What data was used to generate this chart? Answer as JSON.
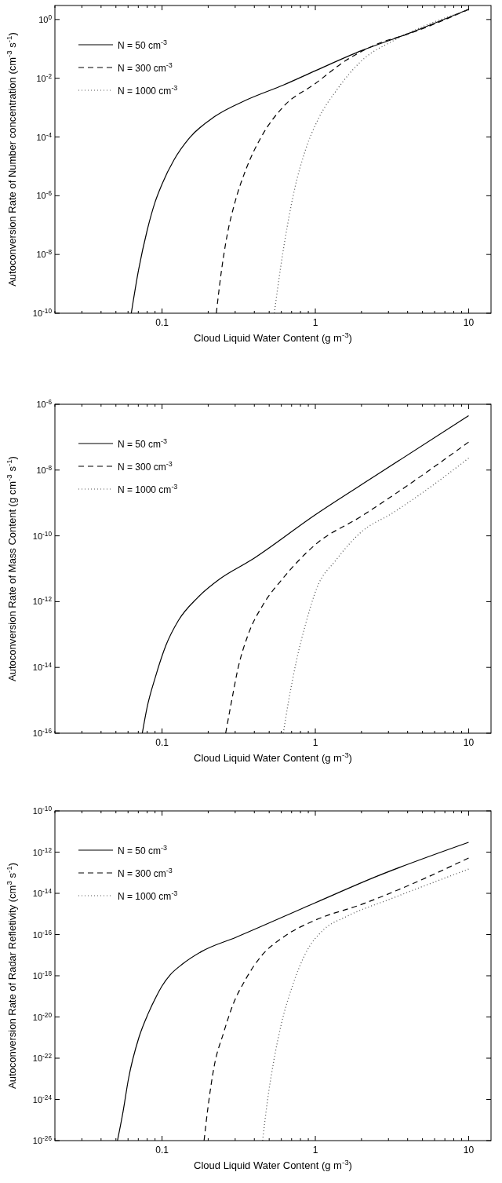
{
  "chart_data": [
    {
      "type": "line",
      "log": "xy",
      "legend": "top left",
      "xlabel": "Cloud Liquid Water Content (g m$^{-3}$)",
      "ylabel": "Autoconversion Rate of Number concentration (cm$^{-3}$ s$^{-1}$)",
      "xlim": [
        0.02,
        14
      ],
      "ylim": [
        1e-10,
        3
      ],
      "xticks": [
        {
          "value": 0.02,
          "label": null
        },
        {
          "value": 0.03,
          "label": null
        },
        {
          "value": 0.04,
          "label": null
        },
        {
          "value": 0.05,
          "label": null
        },
        {
          "value": 0.06,
          "label": null
        },
        {
          "value": 0.07,
          "label": null
        },
        {
          "value": 0.08,
          "label": null
        },
        {
          "value": 0.09,
          "label": null
        },
        0.1,
        {
          "value": 0.2,
          "label": null
        },
        {
          "value": 0.3,
          "label": null
        },
        {
          "value": 0.4,
          "label": null
        },
        {
          "value": 0.5,
          "label": null
        },
        {
          "value": 0.6,
          "label": null
        },
        {
          "value": 0.7,
          "label": null
        },
        {
          "value": 0.8,
          "label": null
        },
        {
          "value": 0.9,
          "label": null
        },
        1,
        {
          "value": 2,
          "label": null
        },
        {
          "value": 3,
          "label": null
        },
        {
          "value": 4,
          "label": null
        },
        {
          "value": 5,
          "label": null
        },
        {
          "value": 6,
          "label": null
        },
        {
          "value": 7,
          "label": null
        },
        {
          "value": 8,
          "label": null
        },
        {
          "value": 9,
          "label": null
        },
        10
      ],
      "yticks": [
        {
          "value": 1e-10,
          "label": "10$^{-10}$"
        },
        {
          "value": 1e-08,
          "label": "10$^{-8}$"
        },
        {
          "value": 1e-06,
          "label": "10$^{-6}$"
        },
        {
          "value": 0.0001,
          "label": "10$^{-4}$"
        },
        {
          "value": 0.01,
          "label": "10$^{-2}$"
        },
        {
          "value": 1,
          "label": "10$^{0}$"
        }
      ],
      "series": [
        {
          "name": "N = 50 cm$^{-3}$",
          "color": "#000000",
          "line_style": "solid",
          "x": [
            0.063,
            0.0703,
            0.08,
            0.09,
            0.1,
            0.12,
            0.151,
            0.221,
            0.353,
            0.62,
            1,
            2.02,
            4.09,
            10
          ],
          "values": [
            1e-10,
            3e-09,
            6.7e-08,
            6e-07,
            2.5e-06,
            1.7e-05,
            9.3e-05,
            0.0005,
            0.0018,
            0.0059,
            0.018,
            0.089,
            0.34,
            2.24
          ]
        },
        {
          "name": "N = 300 cm$^{-3}$",
          "color": "#000000",
          "line_style": "dashed",
          "x": [
            0.226,
            0.242,
            0.266,
            0.299,
            0.353,
            0.447,
            0.621,
            1,
            1.59,
            2.55,
            4.09,
            10
          ],
          "values": [
            1e-10,
            2e-09,
            4.6e-08,
            6e-07,
            8e-06,
            0.000107,
            0.0011,
            0.0066,
            0.041,
            0.148,
            0.33,
            2.2
          ]
        },
        {
          "name": "N = 1000 cm$^{-3}$",
          "color": "#555555",
          "line_style": "dotted",
          "x": [
            0.54,
            0.593,
            0.652,
            0.733,
            0.865,
            1.04,
            1.38,
            2.02,
            3.23,
            5.17,
            10
          ],
          "values": [
            1e-10,
            3.5e-09,
            7.6e-08,
            1.7e-06,
            3.8e-05,
            0.00039,
            0.004,
            0.041,
            0.19,
            0.61,
            2.1
          ]
        }
      ]
    },
    {
      "type": "line",
      "log": "xy",
      "legend": "top left",
      "xlabel": "Cloud Liquid Water Content (g m$^{-3}$)",
      "ylabel": "Autoconversion Rate of Mass Content (g cm$^{-3}$ s$^{-1}$)",
      "xlim": [
        0.02,
        14
      ],
      "ylim": [
        1e-16,
        1e-06
      ],
      "xticks": [
        {
          "value": 0.02,
          "label": null
        },
        {
          "value": 0.03,
          "label": null
        },
        {
          "value": 0.04,
          "label": null
        },
        {
          "value": 0.05,
          "label": null
        },
        {
          "value": 0.06,
          "label": null
        },
        {
          "value": 0.07,
          "label": null
        },
        {
          "value": 0.08,
          "label": null
        },
        {
          "value": 0.09,
          "label": null
        },
        0.1,
        {
          "value": 0.2,
          "label": null
        },
        {
          "value": 0.3,
          "label": null
        },
        {
          "value": 0.4,
          "label": null
        },
        {
          "value": 0.5,
          "label": null
        },
        {
          "value": 0.6,
          "label": null
        },
        {
          "value": 0.7,
          "label": null
        },
        {
          "value": 0.8,
          "label": null
        },
        {
          "value": 0.9,
          "label": null
        },
        1,
        {
          "value": 2,
          "label": null
        },
        {
          "value": 3,
          "label": null
        },
        {
          "value": 4,
          "label": null
        },
        {
          "value": 5,
          "label": null
        },
        {
          "value": 6,
          "label": null
        },
        {
          "value": 7,
          "label": null
        },
        {
          "value": 8,
          "label": null
        },
        {
          "value": 9,
          "label": null
        },
        10
      ],
      "yticks": [
        {
          "value": 1e-16,
          "label": "10$^{-16}$"
        },
        {
          "value": 1e-14,
          "label": "10$^{-14}$"
        },
        {
          "value": 1e-12,
          "label": "10$^{-12}$"
        },
        {
          "value": 1e-10,
          "label": "10$^{-10}$"
        },
        {
          "value": 1e-08,
          "label": "10$^{-8}$"
        },
        {
          "value": 1e-06,
          "label": "10$^{-6}$"
        }
      ],
      "series": [
        {
          "name": "N = 50 cm$^{-3}$",
          "color": "#000000",
          "line_style": "solid",
          "x": [
            0.0743,
            0.0797,
            0.0906,
            0.106,
            0.128,
            0.17,
            0.237,
            0.379,
            1,
            2.51,
            10
          ],
          "values": [
            1e-16,
            5.8e-16,
            5.2e-15,
            4.7e-14,
            2.7e-13,
            1.3e-12,
            4.8e-12,
            1.8e-11,
            4.4e-10,
            7.1e-09,
            4.5e-07
          ]
        },
        {
          "name": "N = 300 cm$^{-3}$",
          "color": "#000000",
          "line_style": "dashed",
          "x": [
            0.26,
            0.286,
            0.314,
            0.362,
            0.458,
            0.608,
            1,
            1.99,
            4.03,
            10
          ],
          "values": [
            1e-16,
            1.1e-15,
            1e-14,
            9.1e-14,
            8.3e-13,
            4.8e-12,
            5.4e-11,
            3.9e-10,
            3.5e-09,
            7.1e-08
          ]
        },
        {
          "name": "N = 1000 cm$^{-3}$",
          "color": "#555555",
          "line_style": "dotted",
          "x": [
            0.618,
            0.668,
            0.753,
            0.867,
            1.02,
            1.36,
            1.99,
            3.18,
            5.11,
            10
          ],
          "values": [
            1e-16,
            9.1e-16,
            1.6e-14,
            2.2e-13,
            2.5e-12,
            1.8e-11,
            1.3e-10,
            4.9e-10,
            2.2e-09,
            2.3e-08
          ]
        }
      ]
    },
    {
      "type": "line",
      "log": "xy",
      "legend": "top left",
      "xlabel": "Cloud Liquid Water Content (g m$^{-3}$)",
      "ylabel": "Autoconversion Rate of Radar Refletivity (cm$^{3}$ s$^{-1}$)",
      "xlim": [
        0.02,
        14
      ],
      "ylim": [
        1e-26,
        1e-10
      ],
      "xticks": [
        {
          "value": 0.02,
          "label": null
        },
        {
          "value": 0.03,
          "label": null
        },
        {
          "value": 0.04,
          "label": null
        },
        {
          "value": 0.05,
          "label": null
        },
        {
          "value": 0.06,
          "label": null
        },
        {
          "value": 0.07,
          "label": null
        },
        {
          "value": 0.08,
          "label": null
        },
        {
          "value": 0.09,
          "label": null
        },
        0.1,
        {
          "value": 0.2,
          "label": null
        },
        {
          "value": 0.3,
          "label": null
        },
        {
          "value": 0.4,
          "label": null
        },
        {
          "value": 0.5,
          "label": null
        },
        {
          "value": 0.6,
          "label": null
        },
        {
          "value": 0.7,
          "label": null
        },
        {
          "value": 0.8,
          "label": null
        },
        {
          "value": 0.9,
          "label": null
        },
        1,
        {
          "value": 2,
          "label": null
        },
        {
          "value": 3,
          "label": null
        },
        {
          "value": 4,
          "label": null
        },
        {
          "value": 5,
          "label": null
        },
        {
          "value": 6,
          "label": null
        },
        {
          "value": 7,
          "label": null
        },
        {
          "value": 8,
          "label": null
        },
        {
          "value": 9,
          "label": null
        },
        10
      ],
      "yticks": [
        {
          "value": 1e-26,
          "label": "10$^{-26}$"
        },
        {
          "value": 1e-24,
          "label": "10$^{-24}$"
        },
        {
          "value": 1e-22,
          "label": "10$^{-22}$"
        },
        {
          "value": 1e-20,
          "label": "10$^{-20}$"
        },
        {
          "value": 1e-18,
          "label": "10$^{-18}$"
        },
        {
          "value": 1e-16,
          "label": "10$^{-16}$"
        },
        {
          "value": 1e-14,
          "label": "10$^{-14}$"
        },
        {
          "value": 1e-12,
          "label": "10$^{-12}$"
        },
        {
          "value": 1e-10,
          "label": "10$^{-10}$"
        }
      ],
      "series": [
        {
          "name": "N = 50 cm$^{-3}$",
          "color": "#000000",
          "line_style": "solid",
          "x": [
            0.0512,
            0.0557,
            0.0604,
            0.0706,
            0.0813,
            0.0914,
            0.1,
            0.113,
            0.136,
            0.181,
            0.304,
            1,
            2.53,
            10
          ],
          "values": [
            1e-26,
            2.6e-25,
            1e-23,
            1e-21,
            1.5e-20,
            9.4e-20,
            3.2e-19,
            1.1e-18,
            3.7e-18,
            1.5e-17,
            7.4e-17,
            3.5e-15,
            6.8e-14,
            3e-12
          ]
        },
        {
          "name": "N = 300 cm$^{-3}$",
          "color": "#000000",
          "line_style": "dashed",
          "x": [
            0.188,
            0.199,
            0.218,
            0.252,
            0.29,
            0.35,
            0.443,
            0.616,
            1,
            2,
            4.05,
            10
          ],
          "values": [
            1e-26,
            3.7e-25,
            3.5e-23,
            1.7e-21,
            3.9e-20,
            6.5e-19,
            8.9e-18,
            7.4e-17,
            5e-16,
            2.9e-15,
            2.4e-14,
            5.2e-13
          ]
        },
        {
          "name": "N = 1000 cm$^{-3}$",
          "color": "#555555",
          "line_style": "dotted",
          "x": [
            0.453,
            0.486,
            0.535,
            0.601,
            0.709,
            0.857,
            1.14,
            1.58,
            3.2,
            10
          ],
          "values": [
            1e-26,
            7.6e-25,
            7e-23,
            4.8e-21,
            3.2e-19,
            1.1e-17,
            1.8e-16,
            7.2e-16,
            5.9e-15,
            1.5e-13
          ]
        }
      ]
    }
  ]
}
